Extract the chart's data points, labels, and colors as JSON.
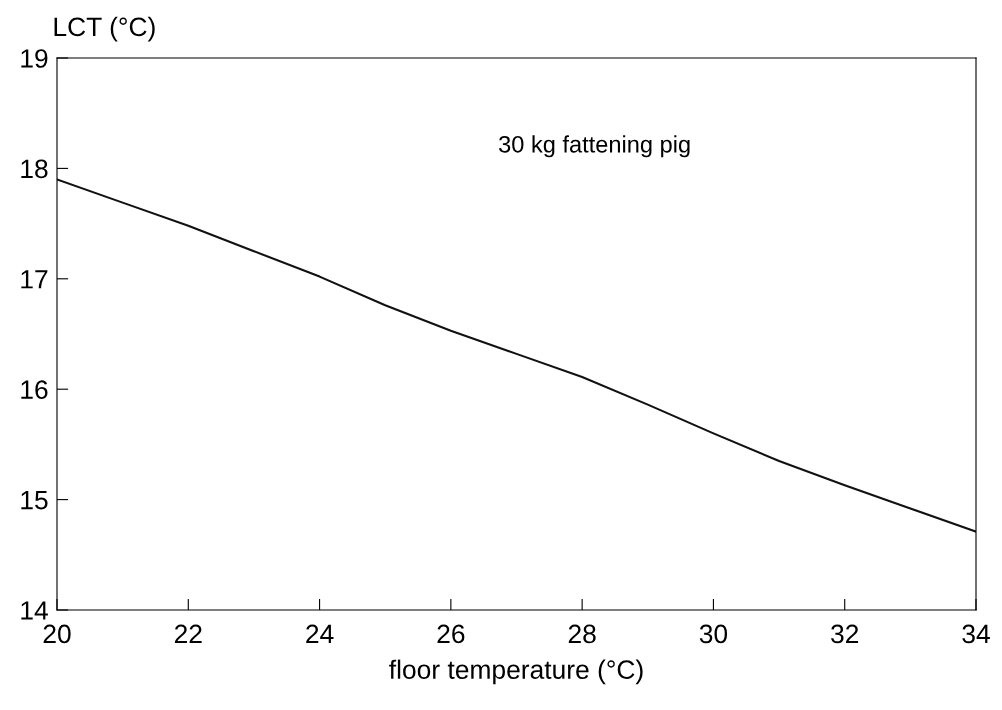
{
  "chart_data": {
    "type": "line",
    "xlabel": "floor temperature (°C)",
    "ylabel": "LCT (°C)",
    "annotations": [
      "30 kg fattening pig"
    ],
    "x": [
      20,
      21,
      22,
      23,
      24,
      25,
      26,
      27,
      28,
      29,
      30,
      31,
      32,
      33,
      34
    ],
    "series": [
      {
        "color": "#111111",
        "values": [
          17.9,
          17.69,
          17.48,
          17.25,
          17.02,
          16.76,
          16.53,
          16.32,
          16.11,
          15.86,
          15.6,
          15.35,
          15.13,
          14.92,
          14.71
        ]
      }
    ],
    "xlim": [
      20,
      34
    ],
    "ylim": [
      14,
      19
    ],
    "xticks": [
      20,
      22,
      24,
      26,
      28,
      30,
      32,
      34
    ],
    "yticks": [
      14,
      15,
      16,
      17,
      18,
      19
    ],
    "grid": false,
    "legend": false
  }
}
